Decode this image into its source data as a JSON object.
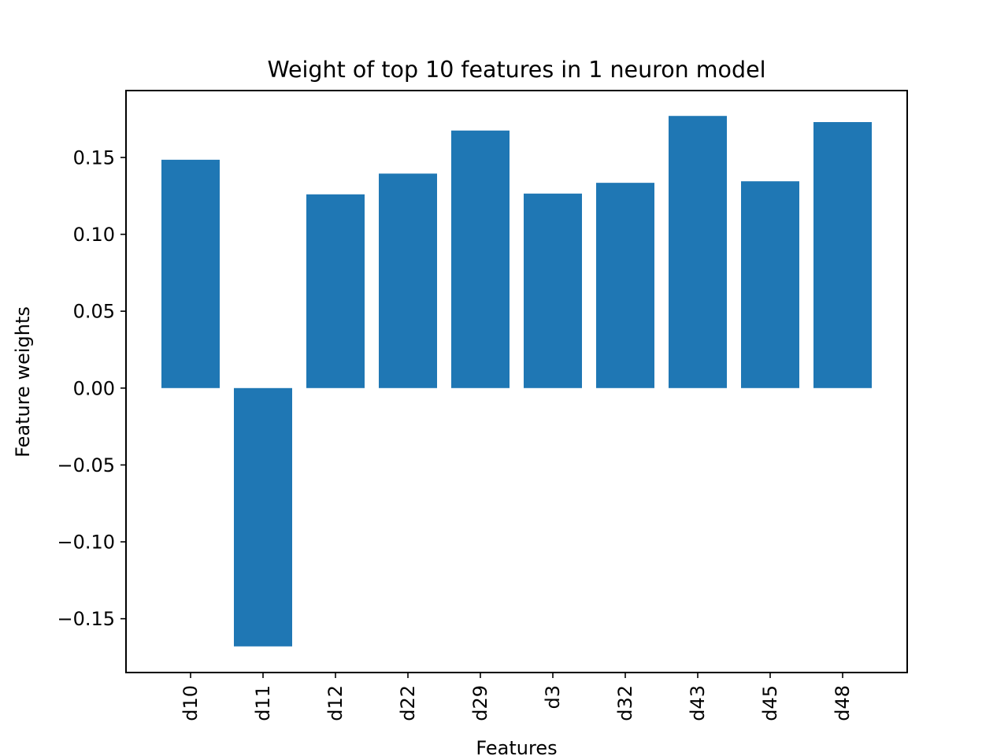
{
  "chart_data": {
    "type": "bar",
    "title": "Weight of top 10 features in 1 neuron model",
    "xlabel": "Features",
    "ylabel": "Feature weights",
    "categories": [
      "d10",
      "d11",
      "d12",
      "d22",
      "d29",
      "d3",
      "d32",
      "d43",
      "d45",
      "d48"
    ],
    "values": [
      0.1485,
      -0.168,
      0.126,
      0.1395,
      0.1675,
      0.1265,
      0.1335,
      0.177,
      0.1345,
      0.173
    ],
    "ylim": [
      -0.185,
      0.1935
    ],
    "yticks": [
      "−0.15",
      "−0.10",
      "−0.05",
      "0.00",
      "0.05",
      "0.10",
      "0.15"
    ],
    "ytick_values": [
      -0.15,
      -0.1,
      -0.05,
      0.0,
      0.05,
      0.1,
      0.15
    ],
    "grid": false,
    "legend": "none",
    "bar_color": "#1f77b4"
  }
}
